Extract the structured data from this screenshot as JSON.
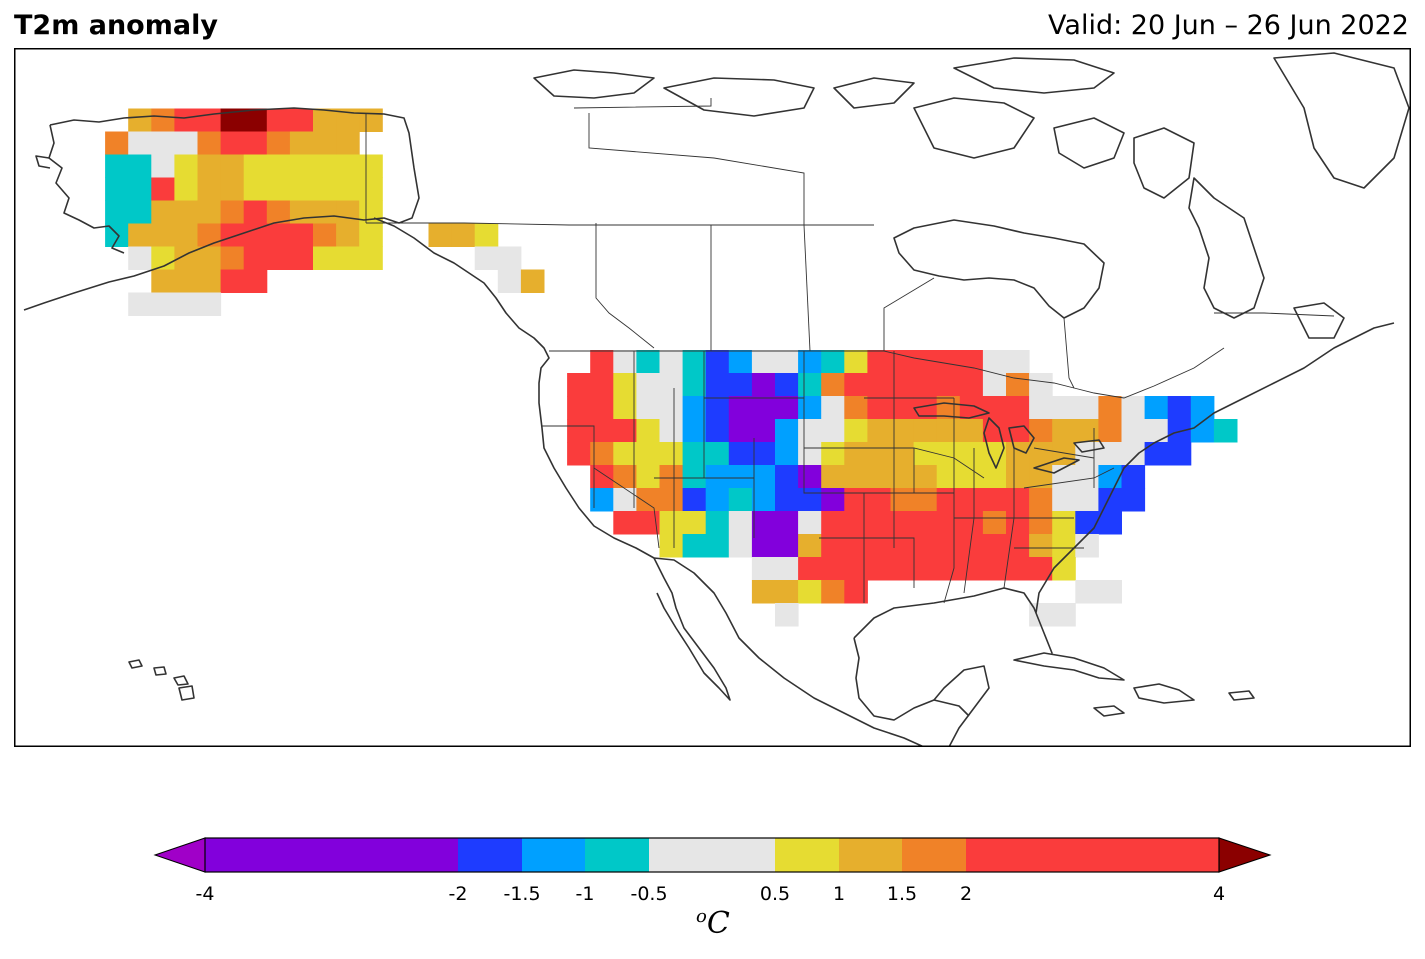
{
  "title": "T2m anomaly",
  "valid": "Valid: 20 Jun – 26 Jun 2022",
  "colorbar": {
    "unit_sup": "o",
    "unit": "C",
    "ticks": [
      "-4",
      "-2",
      "-1.5",
      "-1",
      "-0.5",
      "0.5",
      "1",
      "1.5",
      "2",
      "4"
    ],
    "levels": [
      {
        "from": -4,
        "to": -2,
        "color": "#8200dc"
      },
      {
        "from": -2,
        "to": -1.5,
        "color": "#1e3cff"
      },
      {
        "from": -1.5,
        "to": -1,
        "color": "#00a0ff"
      },
      {
        "from": -1,
        "to": -0.5,
        "color": "#00c8c8"
      },
      {
        "from": -0.5,
        "to": 0.5,
        "color": "#e6e6e6"
      },
      {
        "from": 0.5,
        "to": 1,
        "color": "#e6dc32"
      },
      {
        "from": 1,
        "to": 1.5,
        "color": "#e6af2d"
      },
      {
        "from": 1.5,
        "to": 2,
        "color": "#f08228"
      },
      {
        "from": 2,
        "to": 4,
        "color": "#fa3c3c"
      }
    ],
    "under_color": "#a000c8",
    "over_color": "#8b0000"
  },
  "map_colors": {
    "V": "#8200dc",
    "B": "#1e3cff",
    "L": "#00a0ff",
    "C": "#00c8c8",
    "G": "#e6e6e6",
    "Y": "#e6dc32",
    "O": "#e6af2d",
    "N": "#f08228",
    "R": "#fa3c3c",
    "D": "#8b0000"
  },
  "anomaly_grid": {
    "cell_deg": 2,
    "alaska": {
      "lon_start": -166,
      "lat_start": 70,
      "rows": [
        "..ONRRDDRROOO",
        ".NGGGNRRNOOO.",
        ".CCGYOOYYYYYY",
        ".CCRYOOYYYYYY",
        ".CCOOONRNOOOY",
        ".COOONRRRRNOY",
        "..GYOONRRRYYY",
        "...OOORR.....",
        "..GGGG......."
      ]
    },
    "panhandle": {
      "lon_start": -136,
      "lat_start": 60,
      "rows": [
        "OOY...",
        "..GG..",
        "...GO."
      ]
    },
    "conus": {
      "lon_start": -126,
      "lat_start": 49,
      "rows": [
        "..RGCGCBLGGLCYRRRRRGG.......",
        ".RRYGGCBBVBCNRRRRRRGNG......",
        ".RRYGGLBVVVLGNRRRNRRRGGGNGLBL",
        ".RRRYGLBVVLGGYOOOOORRNOONGGBLC",
        ".RNYYYCCBBLGYOOOYYYYOOOGGGBB.",
        "..RNYNCLLLBVOOOOOYYYOOGGLB...",
        "..LGNNBLCLBBVRRNNRRRRNGGBB...",
        "...RRYYCGVVGRRRRRRRNRNYBB....",
        ".....YCCGVVORRRRRRRRROYG.....",
        ".........GGRRRRRRRRRRRY......",
        ".........OOYNR.........GG....",
        "..........G..........GG....."
      ]
    }
  }
}
